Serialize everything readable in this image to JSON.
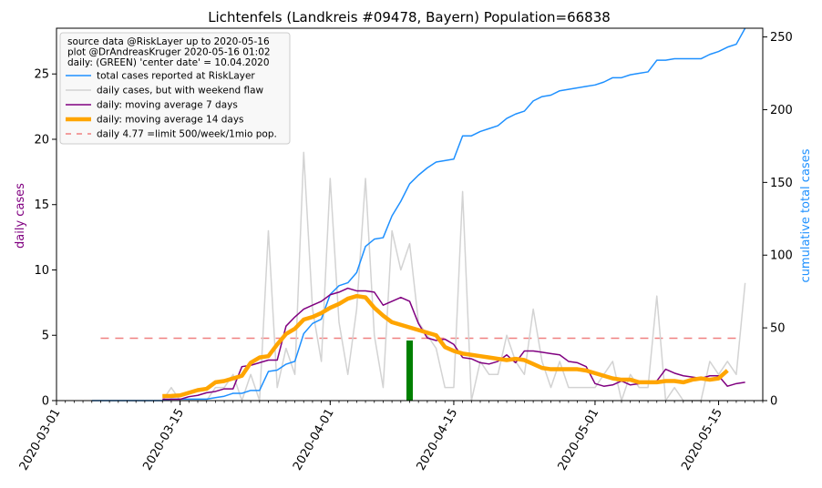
{
  "chart_data": {
    "type": "line",
    "title": "Lichtenfels (Landkreis #09478, Bayern) Population=66838",
    "ylabel_left": "daily cases",
    "ylabel_right": "cumulative total cases",
    "x_axis": {
      "type": "date",
      "range": [
        "2020-03-01",
        "2020-05-20"
      ],
      "tick_labels": [
        "2020-03-01",
        "2020-03-15",
        "2020-04-01",
        "2020-04-15",
        "2020-05-01",
        "2020-05-15"
      ]
    },
    "y_left": {
      "range": [
        0,
        28.5
      ],
      "ticks": [
        0,
        5,
        10,
        15,
        20,
        25
      ]
    },
    "y_right": {
      "range": [
        0,
        256
      ],
      "ticks": [
        0,
        50,
        100,
        150,
        200,
        250
      ]
    },
    "legend": {
      "placement": "top-left",
      "notes": [
        "source data @RiskLayer up to 2020-05-16",
        "plot @DrAndreasKruger 2020-05-16 01:02",
        "daily: (GREEN) 'center date' = 10.04.2020"
      ],
      "entries": [
        {
          "label": "total cases reported at RiskLayer",
          "color": "#1e90ff",
          "style": "solid"
        },
        {
          "label": "daily cases, but with weekend flaw",
          "color": "#d3d3d3",
          "style": "solid"
        },
        {
          "label": "daily: moving average 7 days",
          "color": "#800080",
          "style": "solid"
        },
        {
          "label": "daily: moving average 14 days",
          "color": "#ffa500",
          "style": "thick"
        },
        {
          "label": "daily 4.77 =limit 500/week/1mio pop.",
          "color": "#f08080",
          "style": "dashed"
        }
      ]
    },
    "limit_line": {
      "value": 4.77,
      "start": "2020-03-06",
      "end": "2020-05-17"
    },
    "center_date_bar": {
      "date": "2020-04-10",
      "value": 4.6,
      "color": "#008000"
    },
    "series": [
      {
        "name": "total cases reported at RiskLayer",
        "axis": "right",
        "color": "#1e90ff",
        "start": "2020-03-05",
        "values": [
          0,
          0,
          0,
          0,
          0,
          0,
          0,
          0,
          0,
          1,
          1,
          1,
          1,
          1,
          2,
          3,
          5,
          5,
          7,
          7,
          20,
          21,
          25,
          27,
          46,
          53,
          56,
          73,
          79,
          81,
          88,
          106,
          111,
          112,
          127,
          137,
          149,
          155,
          160,
          164,
          165,
          166,
          182,
          182,
          185,
          187,
          189,
          194,
          197,
          199,
          206,
          209,
          210,
          213,
          214,
          215,
          216,
          217,
          219,
          222,
          222,
          224,
          225,
          226,
          234,
          234,
          235,
          235,
          235,
          235,
          238,
          240,
          243,
          245,
          256
        ]
      },
      {
        "name": "daily cases, but with weekend flaw",
        "axis": "left",
        "color": "#d3d3d3",
        "start": "2020-03-05",
        "values": [
          0,
          0,
          0,
          0,
          0,
          0,
          0,
          0,
          0,
          1,
          0,
          0,
          0,
          0,
          1,
          1,
          2,
          0,
          2,
          0,
          13,
          1,
          4,
          2,
          19,
          7,
          3,
          17,
          6,
          2,
          7,
          17,
          5,
          1,
          13,
          10,
          12,
          6,
          5,
          4,
          1,
          1,
          16,
          0,
          3,
          2,
          2,
          5,
          3,
          2,
          7,
          3,
          1,
          3,
          1,
          1,
          1,
          1,
          2,
          3,
          0,
          2,
          1,
          1,
          8,
          0,
          1,
          0,
          0,
          0,
          3,
          2,
          3,
          2,
          9
        ]
      },
      {
        "name": "daily: moving average 7 days",
        "axis": "left",
        "color": "#800080",
        "start": "2020-03-13",
        "values": [
          0.1,
          0.1,
          0.1,
          0.3,
          0.4,
          0.6,
          0.7,
          0.9,
          0.9,
          2.6,
          2.7,
          2.9,
          3.1,
          3.1,
          5.7,
          6.4,
          7.0,
          7.3,
          7.6,
          8.1,
          8.3,
          8.6,
          8.4,
          8.4,
          8.3,
          7.3,
          7.6,
          7.9,
          7.6,
          5.9,
          4.8,
          4.6,
          4.7,
          4.3,
          3.3,
          3.2,
          2.9,
          2.8,
          3.0,
          3.5,
          2.9,
          3.8,
          3.8,
          3.7,
          3.6,
          3.5,
          3.0,
          2.9,
          2.6,
          1.3,
          1.1,
          1.2,
          1.5,
          1.2,
          1.3,
          1.4,
          1.5,
          2.4,
          2.1,
          1.9,
          1.8,
          1.7,
          1.9,
          1.9,
          1.1,
          1.3,
          1.4
        ]
      },
      {
        "name": "daily: moving average 14 days",
        "axis": "left",
        "color": "#ffa500",
        "start": "2020-03-13",
        "values": [
          0.35,
          0.36,
          0.4,
          0.6,
          0.8,
          0.9,
          1.4,
          1.5,
          1.7,
          1.9,
          2.9,
          3.3,
          3.4,
          4.3,
          5.1,
          5.5,
          6.2,
          6.4,
          6.7,
          7.1,
          7.4,
          7.8,
          8.0,
          7.9,
          7.1,
          6.5,
          6.0,
          5.8,
          5.6,
          5.4,
          5.2,
          5.0,
          4.1,
          3.8,
          3.6,
          3.5,
          3.4,
          3.3,
          3.2,
          3.1,
          3.2,
          3.1,
          2.8,
          2.5,
          2.4,
          2.4,
          2.4,
          2.4,
          2.3,
          2.1,
          1.9,
          1.7,
          1.6,
          1.6,
          1.4,
          1.4,
          1.4,
          1.5,
          1.5,
          1.4,
          1.6,
          1.7,
          1.6,
          1.7,
          2.3
        ]
      }
    ]
  }
}
